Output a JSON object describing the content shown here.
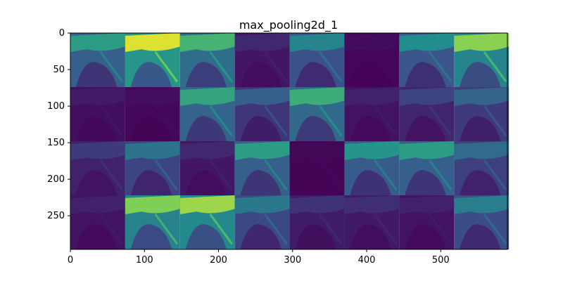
{
  "chart_data": {
    "type": "heatmap",
    "title": "max_pooling2d_1",
    "xlabel": "",
    "ylabel": "",
    "xlim": [
      0,
      590
    ],
    "ylim": [
      296,
      0
    ],
    "xticks": [
      0,
      100,
      200,
      300,
      400,
      500
    ],
    "yticks": [
      0,
      50,
      100,
      150,
      200,
      250
    ],
    "grid": false,
    "colormap": "viridis",
    "tile_size": 74,
    "grid_shape": [
      4,
      8
    ],
    "tile_intensity": [
      [
        0.55,
        0.95,
        0.65,
        0.12,
        0.45,
        0.03,
        0.48,
        0.82
      ],
      [
        0.08,
        0.04,
        0.58,
        0.3,
        0.62,
        0.1,
        0.2,
        0.32
      ],
      [
        0.18,
        0.38,
        0.12,
        0.55,
        0.02,
        0.52,
        0.55,
        0.35
      ],
      [
        0.1,
        0.8,
        0.85,
        0.4,
        0.15,
        0.14,
        0.1,
        0.42
      ]
    ],
    "colors": {
      "low": "#440154",
      "mid": "#21918c",
      "high": "#fde725"
    }
  }
}
